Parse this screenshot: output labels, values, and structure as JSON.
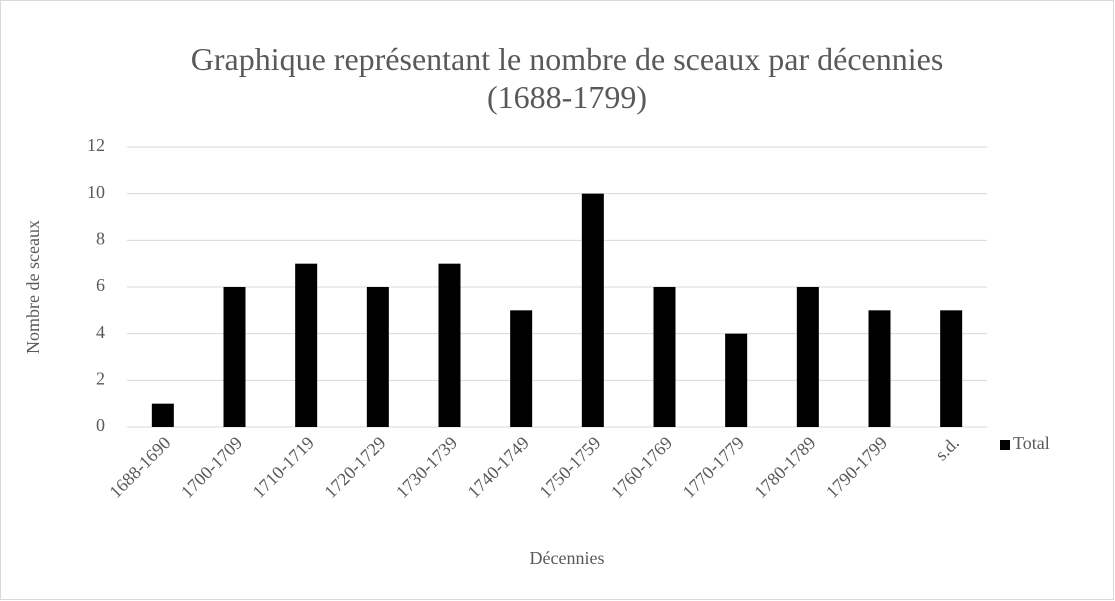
{
  "chart_data": {
    "type": "bar",
    "title": "Graphique représentant le nombre de sceaux par décennies (1688-1799)",
    "x_label": "Décennies",
    "y_label": "Nombre de sceaux",
    "categories": [
      "1688-1690",
      "1700-1709",
      "1710-1719",
      "1720-1729",
      "1730-1739",
      "1740-1749",
      "1750-1759",
      "1760-1769",
      "1770-1779",
      "1780-1789",
      "1790-1799",
      "s.d."
    ],
    "series": [
      {
        "name": "Total",
        "color": "#000000",
        "values": [
          1,
          6,
          7,
          6,
          7,
          5,
          10,
          6,
          4,
          6,
          5,
          5
        ]
      }
    ],
    "ylim": [
      0,
      12
    ],
    "yticks": [
      0,
      2,
      4,
      6,
      8,
      10,
      12
    ],
    "grid": true,
    "legend": "right"
  }
}
